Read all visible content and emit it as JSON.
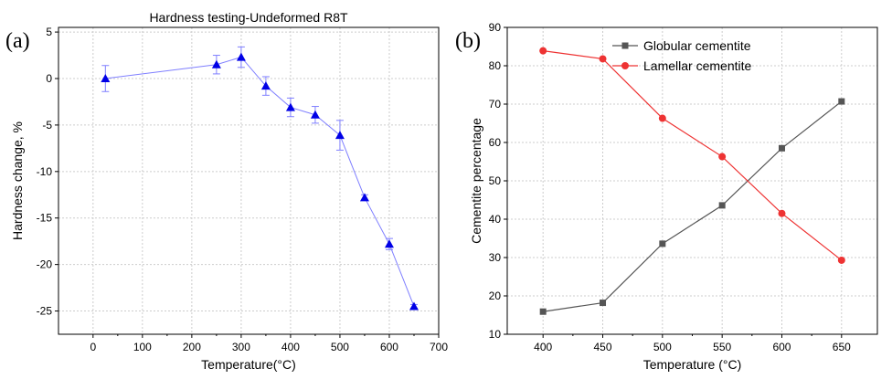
{
  "chart_data": [
    {
      "panel": "(a)",
      "type": "line",
      "title": "Hardness testing-Undeformed R8T",
      "xlabel": "Temperature(°C)",
      "ylabel": "Hardness change, %",
      "xlim": [
        -70,
        700
      ],
      "ylim": [
        -27.5,
        5.5
      ],
      "xticks": [
        0,
        100,
        200,
        300,
        400,
        500,
        600,
        700
      ],
      "yticks": [
        5,
        0,
        -5,
        -10,
        -15,
        -20,
        -25
      ],
      "grid": true,
      "legend": "none",
      "colors": {
        "series": "#7f7fff",
        "marker": "#0000e6"
      },
      "series": [
        {
          "x": [
            25,
            250,
            300,
            350,
            400,
            450,
            500,
            550,
            600,
            650
          ],
          "y": [
            0.0,
            1.5,
            2.3,
            -0.8,
            -3.1,
            -3.9,
            -6.1,
            -12.8,
            -17.8,
            -24.5
          ],
          "err": [
            1.4,
            1.0,
            1.1,
            1.0,
            1.0,
            0.9,
            1.6,
            0.3,
            0.6,
            0.2
          ],
          "marker": "triangle-up"
        }
      ]
    },
    {
      "panel": "(b)",
      "type": "line",
      "title": "",
      "xlabel": "Temperature (°C)",
      "ylabel": "Cementite percentage",
      "x": [
        400,
        450,
        500,
        550,
        600,
        650
      ],
      "xlim": [
        370,
        680
      ],
      "ylim": [
        10,
        90
      ],
      "xticks": [
        400,
        450,
        500,
        550,
        600,
        650
      ],
      "yticks": [
        10,
        20,
        30,
        40,
        50,
        60,
        70,
        80,
        90
      ],
      "grid": true,
      "legend": "top-center",
      "series": [
        {
          "name": "Globular cementite",
          "values": [
            15.9,
            18.2,
            33.6,
            43.6,
            58.5,
            70.7
          ],
          "color": "#555555",
          "marker": "square"
        },
        {
          "name": "Lamellar cementite",
          "values": [
            83.9,
            81.8,
            66.3,
            56.3,
            41.5,
            29.3
          ],
          "color": "#ee3333",
          "marker": "circle"
        }
      ]
    }
  ]
}
